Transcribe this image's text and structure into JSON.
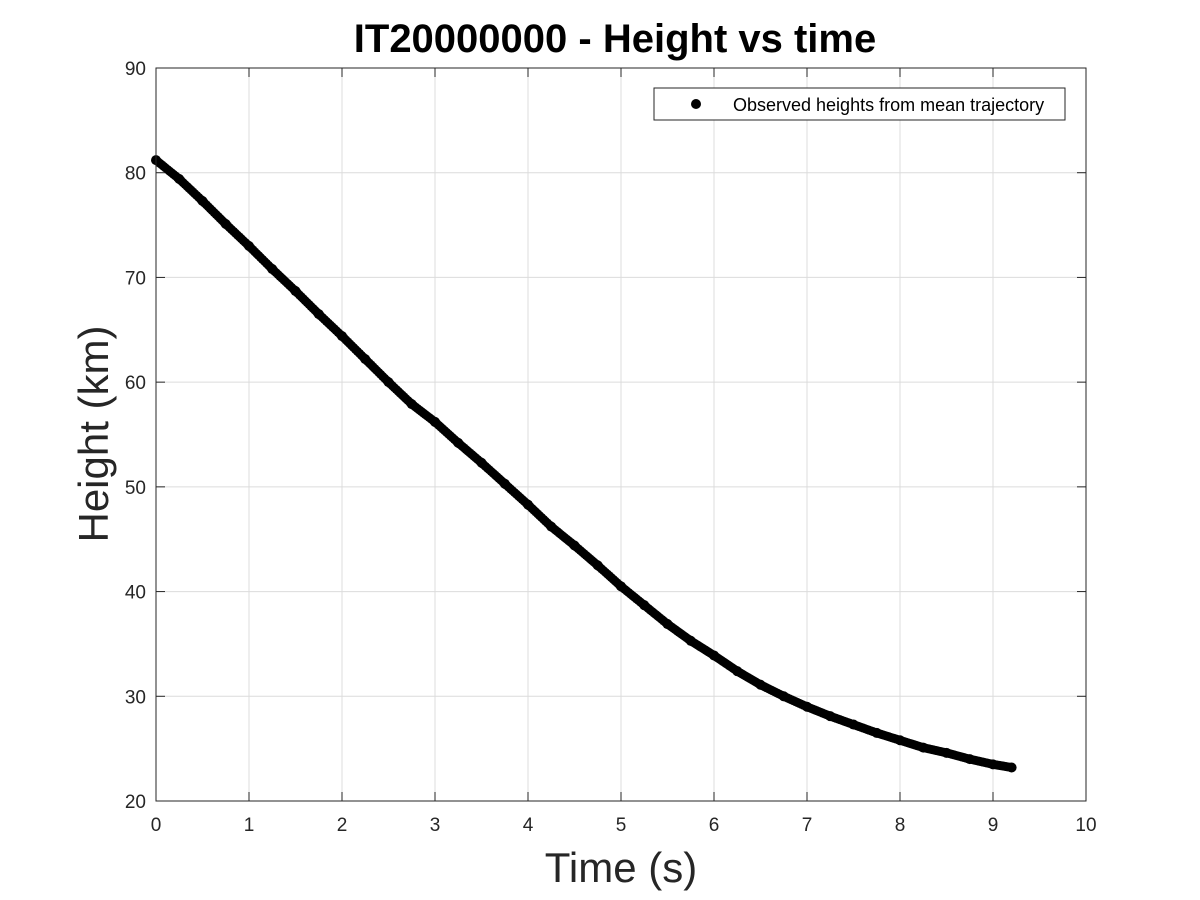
{
  "chart_data": {
    "type": "scatter",
    "title": "IT20000000 - Height vs time",
    "xlabel": "Time (s)",
    "ylabel": "Height (km)",
    "xlim": [
      0,
      10
    ],
    "ylim": [
      20,
      90
    ],
    "xticks": [
      0,
      1,
      2,
      3,
      4,
      5,
      6,
      7,
      8,
      9,
      10
    ],
    "yticks": [
      20,
      30,
      40,
      50,
      60,
      70,
      80,
      90
    ],
    "grid": true,
    "legend_position": "top-right",
    "series": [
      {
        "name": "Observed heights from mean trajectory",
        "color": "#000000",
        "marker": "filled-circle",
        "x": [
          0.0,
          0.25,
          0.5,
          0.75,
          1.0,
          1.25,
          1.5,
          1.75,
          2.0,
          2.25,
          2.5,
          2.75,
          3.0,
          3.25,
          3.5,
          3.75,
          4.0,
          4.25,
          4.5,
          4.75,
          5.0,
          5.25,
          5.5,
          5.75,
          6.0,
          6.25,
          6.5,
          6.75,
          7.0,
          7.25,
          7.5,
          7.75,
          8.0,
          8.25,
          8.5,
          8.75,
          9.0,
          9.2
        ],
        "y": [
          81.2,
          79.4,
          77.3,
          75.1,
          73.0,
          70.8,
          68.7,
          66.5,
          64.4,
          62.2,
          60.0,
          57.9,
          56.2,
          54.2,
          52.3,
          50.3,
          48.3,
          46.2,
          44.4,
          42.5,
          40.5,
          38.7,
          36.9,
          35.3,
          33.9,
          32.4,
          31.1,
          30.0,
          29.0,
          28.1,
          27.3,
          26.5,
          25.8,
          25.1,
          24.6,
          24.0,
          23.5,
          23.2
        ]
      }
    ]
  }
}
